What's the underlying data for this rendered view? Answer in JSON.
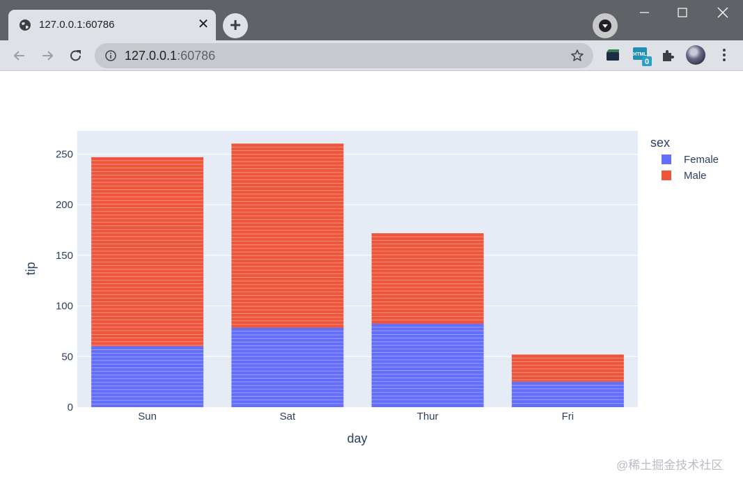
{
  "browser": {
    "tab_title": "127.0.0.1:60786",
    "url_host": "127.0.0.1",
    "url_port": ":60786",
    "extension_badge": "0"
  },
  "chart_data": {
    "type": "bar",
    "barmode": "stack",
    "categories": [
      "Sun",
      "Sat",
      "Thur",
      "Fri"
    ],
    "series": [
      {
        "name": "Female",
        "color": "#636efa",
        "values": [
          60.2,
          78.45,
          82.42,
          25.03
        ]
      },
      {
        "name": "Male",
        "color": "#ef553b",
        "values": [
          186.78,
          181.95,
          89.41,
          26.93
        ]
      }
    ],
    "xlabel": "day",
    "ylabel": "tip",
    "yticks": [
      0,
      50,
      100,
      150,
      200,
      250
    ],
    "ylim": [
      0,
      273
    ],
    "legend_title": "sex",
    "legend_position": "top-right",
    "grid": true,
    "plot_bg": "#e5ecf6"
  },
  "watermark": "@稀土掘金技术社区"
}
